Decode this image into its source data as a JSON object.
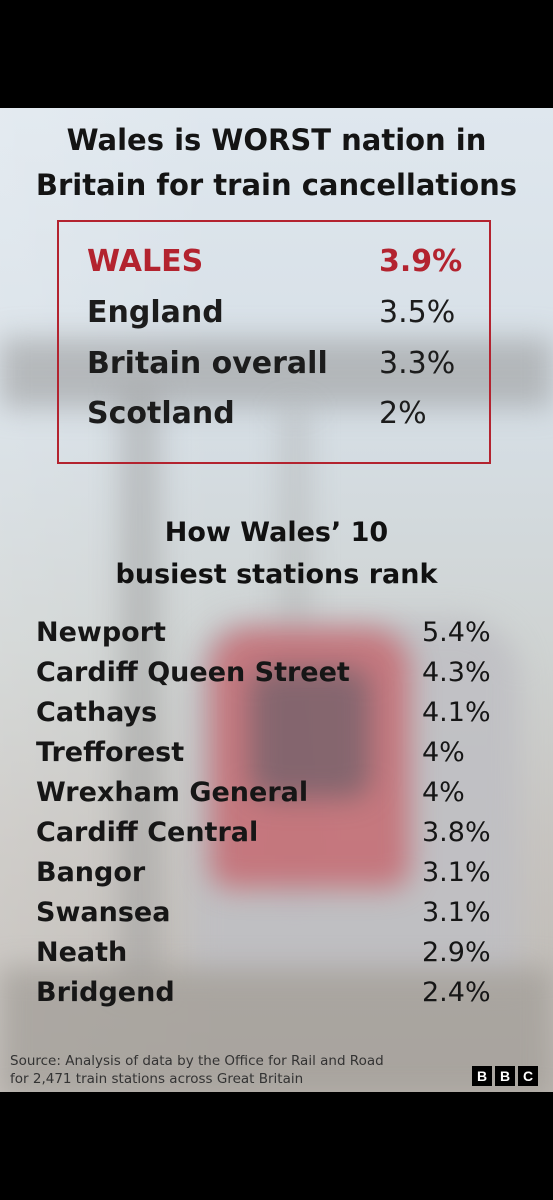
{
  "title": [
    "Wales is WORST nation in",
    "Britain for train cancellations"
  ],
  "nations": [
    {
      "name": "WALES",
      "value": "3.9%",
      "highlight": true
    },
    {
      "name": "England",
      "value": "3.5%",
      "highlight": false
    },
    {
      "name": "Britain overall",
      "value": "3.3%",
      "highlight": false
    },
    {
      "name": "Scotland",
      "value": "2%",
      "highlight": false
    }
  ],
  "subtitle": [
    "How Wales’ 10",
    "busiest stations rank"
  ],
  "stations": [
    {
      "name": "Newport",
      "value": "5.4%"
    },
    {
      "name": "Cardiff Queen Street",
      "value": "4.3%"
    },
    {
      "name": "Cathays",
      "value": "4.1%"
    },
    {
      "name": "Trefforest",
      "value": "4%"
    },
    {
      "name": "Wrexham General",
      "value": "4%"
    },
    {
      "name": "Cardiff Central",
      "value": "3.8%"
    },
    {
      "name": "Bangor",
      "value": "3.1%"
    },
    {
      "name": "Swansea",
      "value": "3.1%"
    },
    {
      "name": "Neath",
      "value": "2.9%"
    },
    {
      "name": "Bridgend",
      "value": "2.4%"
    }
  ],
  "source": [
    "Source: Analysis of data by the Office for Rail and Road",
    "for 2,471 train stations across Great Britain"
  ],
  "logo": {
    "letters": [
      "B",
      "B",
      "C"
    ]
  },
  "colors": {
    "accent": "#b3232f",
    "text": "#141414",
    "page": "#000000"
  }
}
